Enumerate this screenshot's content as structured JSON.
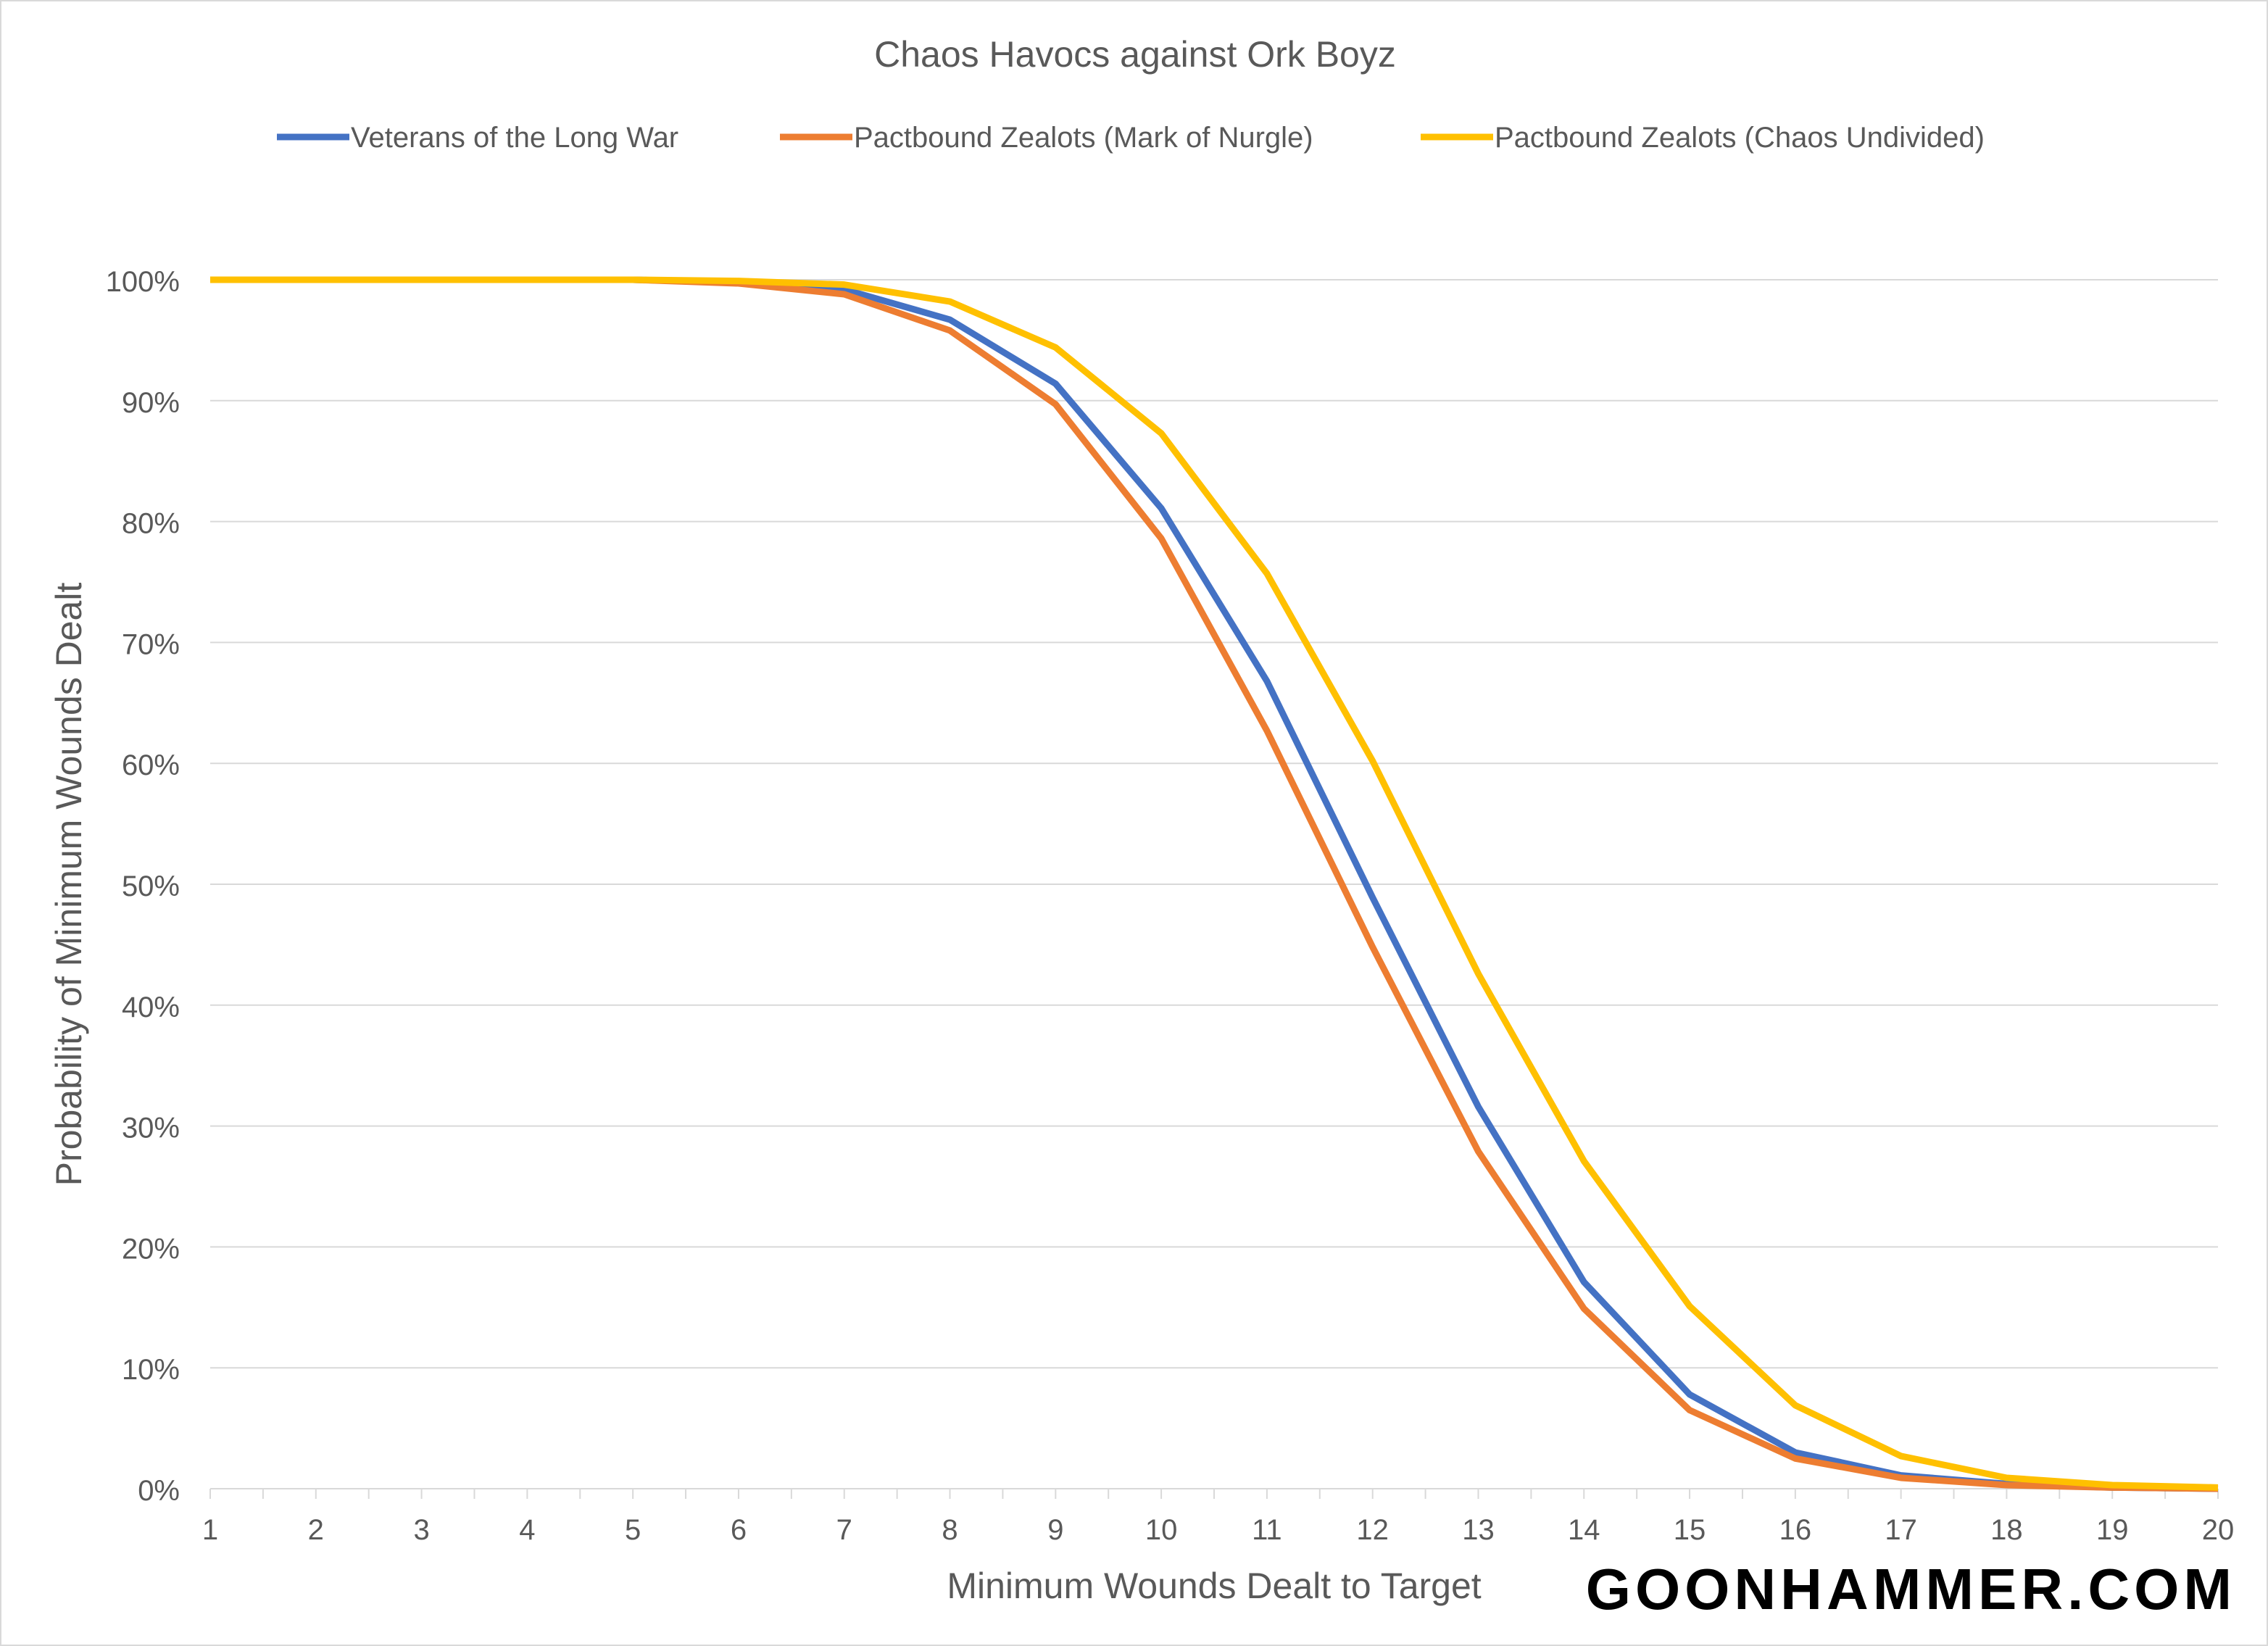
{
  "chart_data": {
    "type": "line",
    "title": "Chaos Havocs against Ork Boyz",
    "xlabel": "Minimum Wounds Dealt to Target",
    "ylabel": "Probability of Minimum Wounds Dealt",
    "x": [
      1,
      2,
      3,
      4,
      5,
      6,
      7,
      8,
      9,
      10,
      11,
      12,
      13,
      14,
      15,
      16,
      17,
      18,
      19,
      20
    ],
    "ylim": [
      0,
      100
    ],
    "yticks": [
      "0%",
      "10%",
      "20%",
      "30%",
      "40%",
      "50%",
      "60%",
      "70%",
      "80%",
      "90%",
      "100%"
    ],
    "grid": true,
    "legend": "top",
    "series": [
      {
        "name": "Veterans of the Long War",
        "color": "#4472C4",
        "values": [
          100,
          100,
          100,
          100,
          100,
          99.8,
          99.2,
          96.7,
          91.4,
          81.1,
          66.8,
          48.9,
          31.6,
          17.1,
          7.8,
          3.0,
          1.1,
          0.4,
          0.1,
          0.0
        ]
      },
      {
        "name": "Pactbound Zealots (Mark of Nurgle)",
        "color": "#ED7D31",
        "values": [
          100,
          100,
          100,
          100,
          100,
          99.7,
          98.8,
          95.8,
          89.7,
          78.6,
          62.7,
          44.8,
          27.9,
          14.9,
          6.5,
          2.5,
          0.9,
          0.3,
          0.1,
          0.0
        ]
      },
      {
        "name": "Pactbound Zealots (Chaos Undivided)",
        "color": "#FFC000",
        "values": [
          100,
          100,
          100,
          100,
          100,
          99.9,
          99.6,
          98.2,
          94.4,
          87.3,
          75.7,
          60.2,
          42.6,
          27.1,
          15.1,
          6.9,
          2.7,
          0.9,
          0.3,
          0.1
        ]
      }
    ]
  },
  "watermark": "GOONHAMMER.COM"
}
